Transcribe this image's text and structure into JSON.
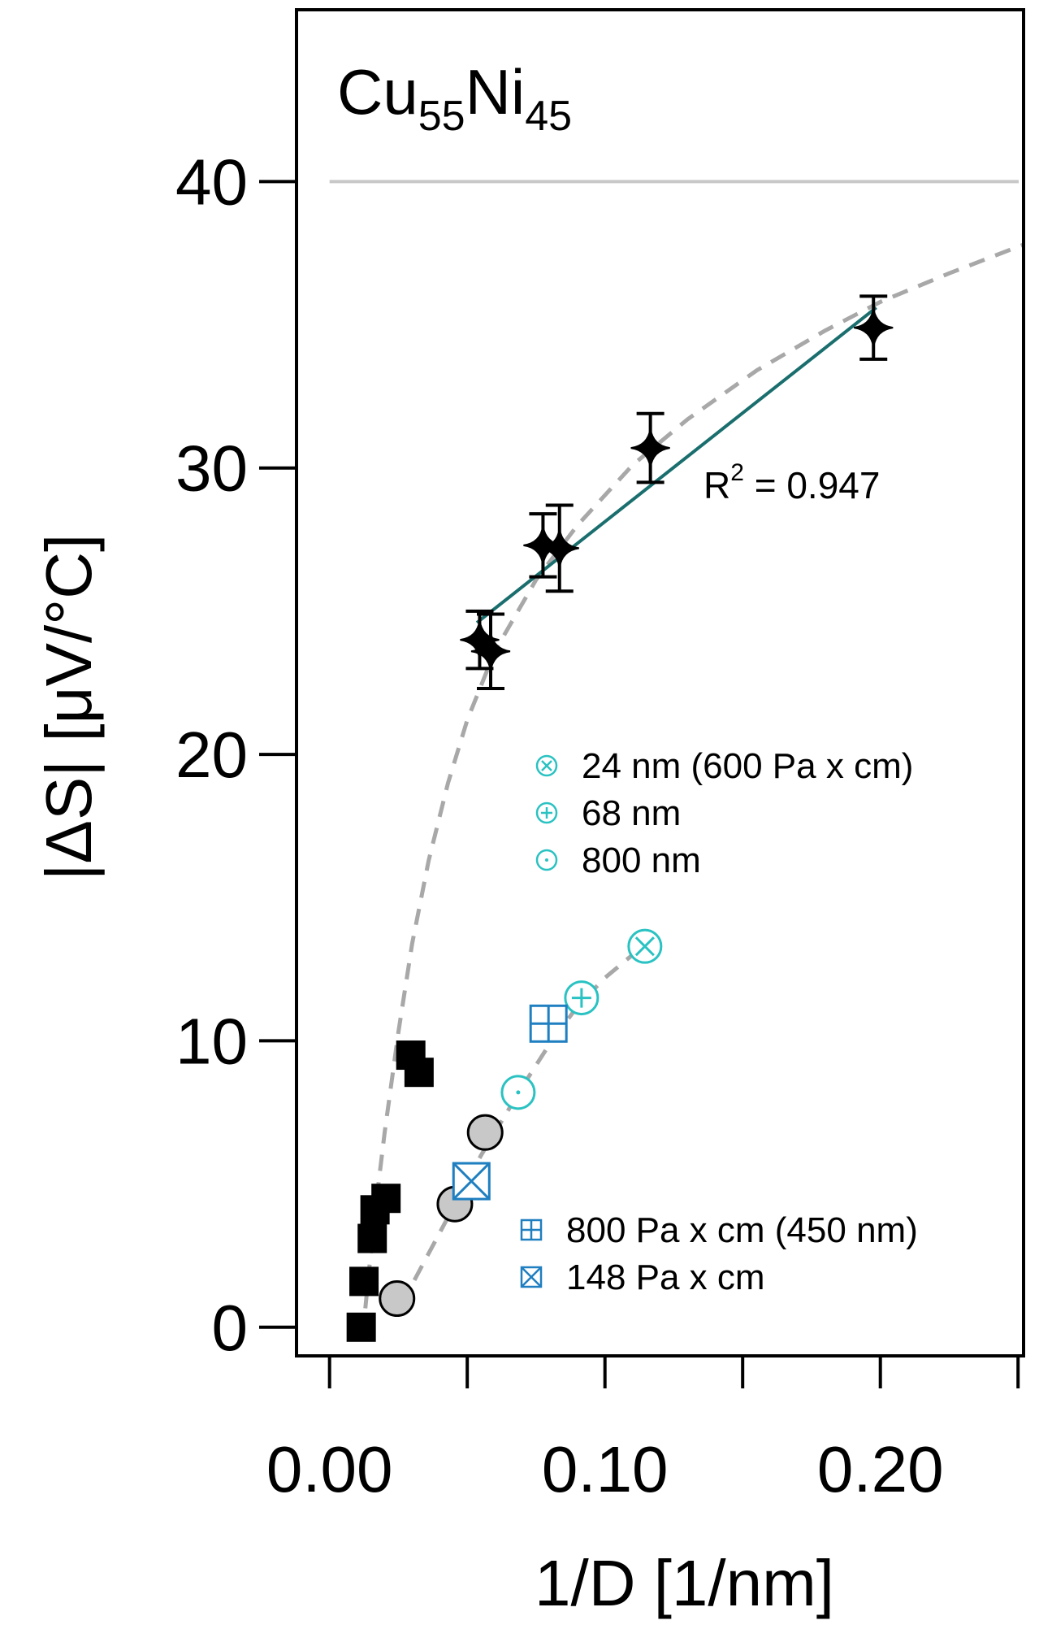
{
  "chart_data": {
    "type": "scatter",
    "title": "Cu55Ni45",
    "title_parts": {
      "base1": "Cu",
      "sub1": "55",
      "base2": "Ni",
      "sub2": "45"
    },
    "xlabel": "1/D [1/nm]",
    "ylabel": "|ΔS| [μV/°C]",
    "xlim": [
      -0.012,
      0.252
    ],
    "ylim": [
      -1.0,
      46.0
    ],
    "x_ticks": [
      0.0,
      0.05,
      0.1,
      0.15,
      0.2,
      0.25
    ],
    "x_tick_labels": [
      {
        "value": 0.0,
        "label": "0.00"
      },
      {
        "value": 0.1,
        "label": "0.10"
      },
      {
        "value": 0.2,
        "label": "0.20"
      }
    ],
    "y_ticks": [
      0,
      10,
      20,
      30,
      40
    ],
    "y_tick_labels": [
      "0",
      "10",
      "20",
      "30",
      "40"
    ],
    "reference_line": {
      "y": 40,
      "color": "#c8c8c8"
    },
    "series": [
      {
        "name": "films (diamond)",
        "marker": "diamond",
        "color": "#000000",
        "points": [
          {
            "x": 0.0545,
            "y": 24.0,
            "err": 1.0
          },
          {
            "x": 0.0585,
            "y": 23.6,
            "err": 1.3
          },
          {
            "x": 0.0775,
            "y": 27.3,
            "err": 1.1
          },
          {
            "x": 0.0835,
            "y": 27.2,
            "err": 1.5
          },
          {
            "x": 0.1165,
            "y": 30.7,
            "err": 1.2
          },
          {
            "x": 0.1975,
            "y": 34.9,
            "err": 1.1
          }
        ]
      },
      {
        "name": "black squares",
        "marker": "square",
        "color": "#000000",
        "points": [
          {
            "x": 0.0115,
            "y": 0.0
          },
          {
            "x": 0.0125,
            "y": 1.6
          },
          {
            "x": 0.0155,
            "y": 3.1
          },
          {
            "x": 0.0165,
            "y": 4.1
          },
          {
            "x": 0.0205,
            "y": 4.5
          },
          {
            "x": 0.0295,
            "y": 9.5
          },
          {
            "x": 0.0325,
            "y": 8.9
          }
        ]
      },
      {
        "name": "grey circles",
        "marker": "circle",
        "color": "#c8c8c8",
        "points": [
          {
            "x": 0.0245,
            "y": 1.0
          },
          {
            "x": 0.0455,
            "y": 4.3
          },
          {
            "x": 0.0565,
            "y": 6.8
          }
        ]
      },
      {
        "name": "24 nm (600 Pa x cm)",
        "marker": "circle-x",
        "color": "#2ac2c2",
        "points": [
          {
            "x": 0.1145,
            "y": 13.3
          }
        ]
      },
      {
        "name": "68 nm",
        "marker": "circle-plus",
        "color": "#2ac2c2",
        "points": [
          {
            "x": 0.0915,
            "y": 11.5
          }
        ]
      },
      {
        "name": "800 nm",
        "marker": "circle-dot",
        "color": "#2ac2c2",
        "points": [
          {
            "x": 0.0685,
            "y": 8.2
          }
        ]
      },
      {
        "name": "800 Pa x cm (450 nm)",
        "marker": "square-plus",
        "color": "#1f7fc0",
        "points": [
          {
            "x": 0.0795,
            "y": 10.6
          }
        ]
      },
      {
        "name": "148 Pa x cm",
        "marker": "square-x",
        "color": "#1f7fc0",
        "points": [
          {
            "x": 0.0515,
            "y": 5.1
          }
        ]
      }
    ],
    "fit_line": {
      "color": "#1a6e6e",
      "label_base": "R",
      "label_sup": "2",
      "label_rest": " = 0.947",
      "x": [
        0.0535,
        0.1985
      ],
      "y": [
        24.6,
        35.6
      ]
    },
    "guide_curves": [
      {
        "name": "upper dashed guide",
        "color": "#a8a8a8",
        "x": [
          0.012,
          0.016,
          0.02,
          0.025,
          0.03,
          0.036,
          0.043,
          0.05,
          0.06,
          0.075,
          0.09,
          0.11,
          0.13,
          0.155,
          0.18,
          0.2,
          0.225,
          0.252
        ],
        "y": [
          -0.3,
          3.6,
          6.8,
          10.3,
          13.4,
          16.3,
          19.0,
          21.2,
          23.6,
          26.1,
          28.0,
          30.1,
          31.7,
          33.4,
          34.8,
          35.8,
          36.8,
          37.8
        ]
      },
      {
        "name": "lower dashed guide",
        "color": "#a8a8a8",
        "x": [
          0.026,
          0.03,
          0.035,
          0.04,
          0.045,
          0.05,
          0.055,
          0.06,
          0.07,
          0.08,
          0.09,
          0.1,
          0.11,
          0.115
        ],
        "y": [
          0.8,
          1.5,
          2.4,
          3.3,
          4.2,
          5.1,
          6.0,
          6.8,
          8.4,
          9.9,
          11.2,
          12.2,
          13.0,
          13.3
        ]
      }
    ],
    "legend_top": {
      "position": "middle-right",
      "entries": [
        "24 nm (600 Pa x cm)",
        "68 nm",
        "800 nm"
      ]
    },
    "legend_bottom": {
      "position": "bottom-right",
      "entries": [
        "800 Pa x cm (450 nm)",
        "148 Pa x cm"
      ]
    }
  }
}
